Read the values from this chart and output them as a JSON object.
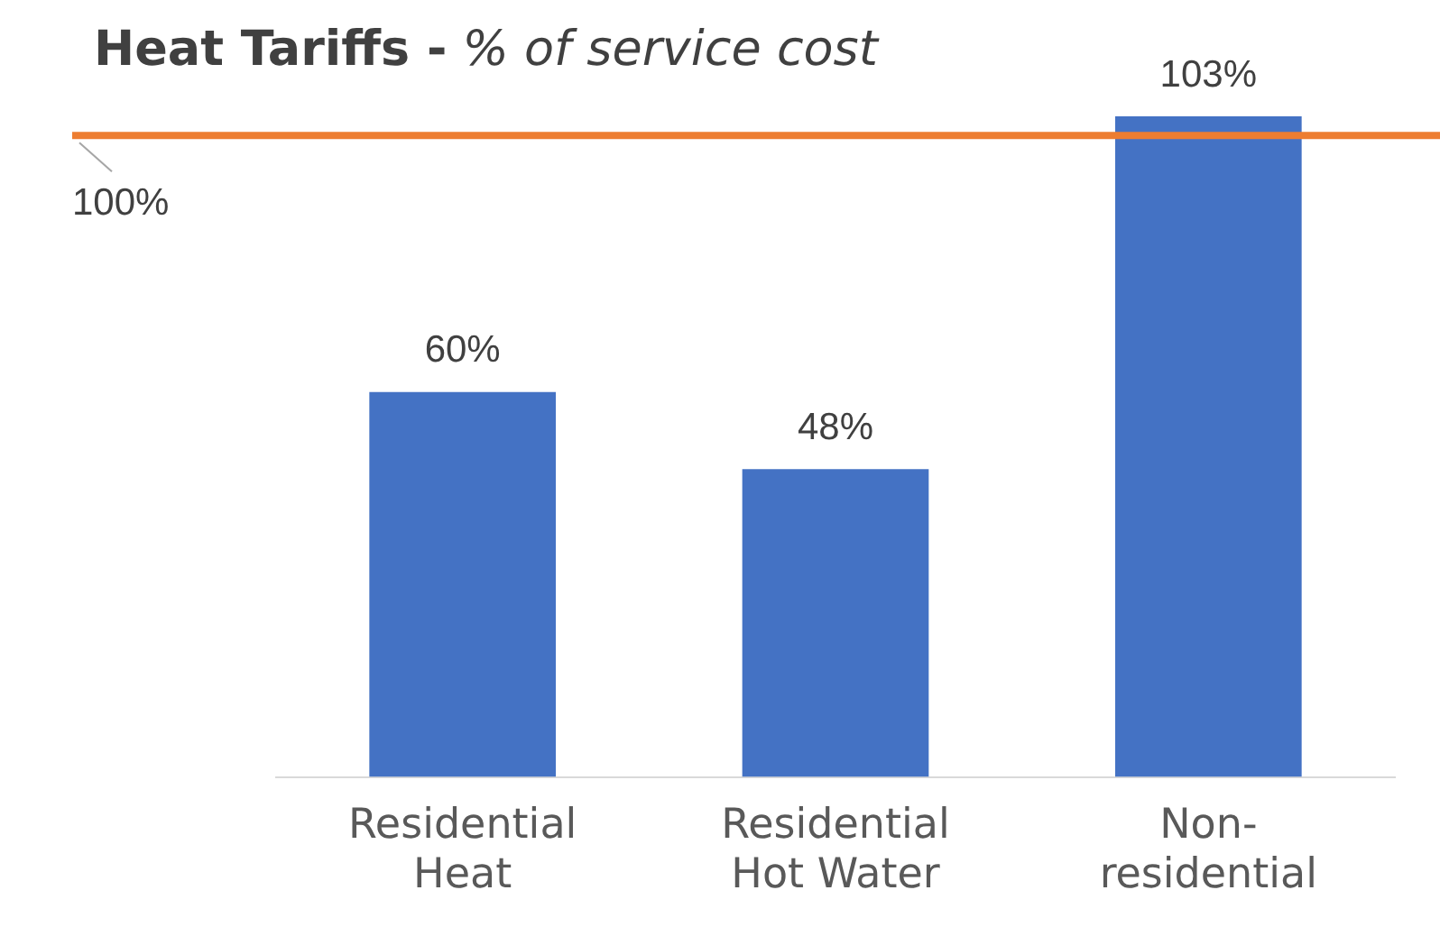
{
  "chart_data": {
    "type": "bar",
    "title": "Heat Tariffs - % of service cost",
    "categories": [
      "Residential Heat",
      "Residential Hot Water",
      "Non-residential"
    ],
    "values": [
      60,
      48,
      103
    ],
    "color": "#4472c4",
    "tick_labels": "x",
    "grid": false,
    "legend": false,
    "data_labels": true,
    "value_labels": [
      "60%",
      "48%",
      "103%"
    ],
    "ref_lines": [
      {
        "axis": "y",
        "value": 100,
        "label": "100%",
        "color": "#ed7d31"
      }
    ]
  }
}
